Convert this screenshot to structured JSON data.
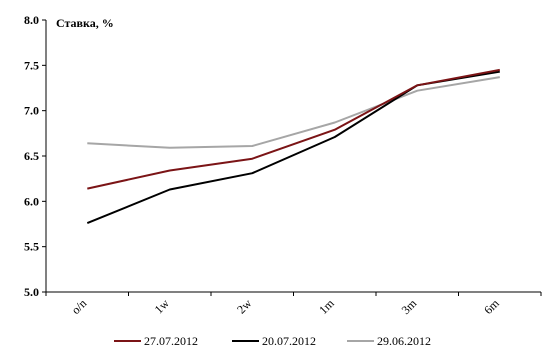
{
  "chart_data": {
    "type": "line",
    "title": "",
    "ylabel": "Ставка, %",
    "xlabel": "",
    "categories": [
      "o/n",
      "1w",
      "2w",
      "1m",
      "3m",
      "6m"
    ],
    "ylim": [
      5.0,
      8.0
    ],
    "yticks": [
      "5.0",
      "5.5",
      "6.0",
      "6.5",
      "7.0",
      "7.5",
      "8.0"
    ],
    "grid": false,
    "legend_position": "bottom",
    "series": [
      {
        "name": "27.07.2012",
        "color": "#7b1416",
        "values": [
          6.14,
          6.34,
          6.47,
          6.79,
          7.28,
          7.45
        ]
      },
      {
        "name": "20.07.2012",
        "color": "#000000",
        "values": [
          5.76,
          6.13,
          6.31,
          6.71,
          7.28,
          7.43
        ]
      },
      {
        "name": "29.06.2012",
        "color": "#a6a6a6",
        "values": [
          6.64,
          6.59,
          6.61,
          6.87,
          7.22,
          7.37
        ]
      }
    ]
  }
}
